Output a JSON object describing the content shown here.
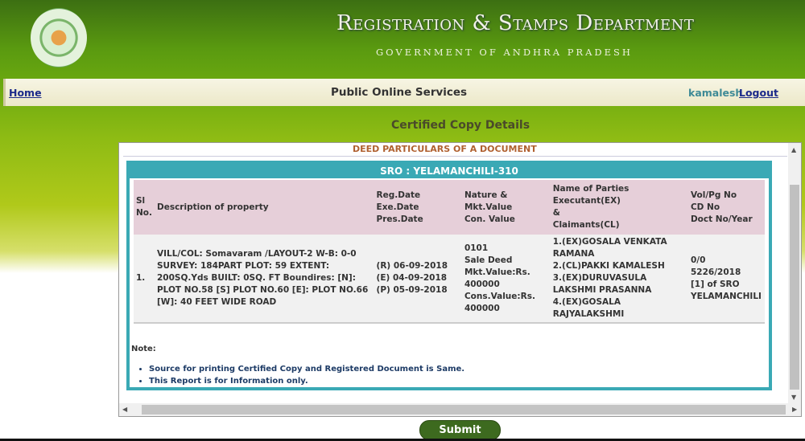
{
  "header": {
    "title": "Registration & Stamps Department",
    "subtitle": "GOVERNMENT OF ANDHRA PRADESH"
  },
  "nav": {
    "home": "Home",
    "center": "Public Online Services",
    "user": "kamalesh",
    "logout": "Logout"
  },
  "page_title": "Certified Copy Details",
  "section_heading": "DEED PARTICULARS OF A DOCUMENT",
  "sro": "SRO : YELAMANCHILI-310",
  "table": {
    "headers": [
      "Sl No.",
      "Description of property",
      "Reg.Date\nExe.Date\nPres.Date",
      "Nature &\nMkt.Value\nCon. Value",
      "Name of Parties\nExecutant(EX)\n&\nClaimants(CL)",
      "Vol/Pg No\nCD No\nDoct No/Year"
    ],
    "rows": [
      [
        "1.",
        "VILL/COL: Somavaram /LAYOUT-2 W-B: 0-0 SURVEY: 184PART PLOT: 59 EXTENT: 200SQ.Yds BUILT: 0SQ. FT Boundires: [N]: PLOT NO.58 [S] PLOT NO.60 [E]: PLOT NO.66 [W]: 40 FEET WIDE ROAD",
        "(R) 06-09-2018\n(E) 04-09-2018\n(P) 05-09-2018",
        "0101\nSale Deed\nMkt.Value:Rs.\n400000\nCons.Value:Rs.\n400000",
        "1.(EX)GOSALA VENKATA\nRAMANA\n2.(CL)PAKKI KAMALESH\n3.(EX)DURUVASULA\nLAKSHMI PRASANNA\n4.(EX)GOSALA\nRAJYALAKSHMI",
        "0/0\n5226/2018\n[1] of SRO\nYELAMANCHILI"
      ]
    ]
  },
  "note": {
    "label": "Note:",
    "items": [
      "Source for printing Certified Copy and Registered Document is Same.",
      "This Report is for Information only."
    ]
  },
  "submit": "Submit",
  "colors": {
    "header_green": "#3c6f12",
    "teal": "#3aa9b5",
    "button": "#3d6a1f"
  }
}
